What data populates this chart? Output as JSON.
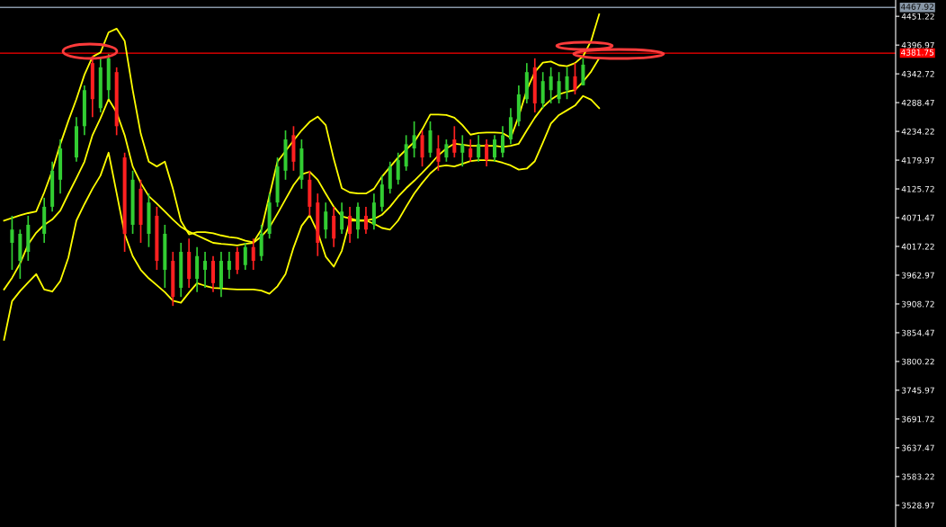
{
  "chart_data": {
    "type": "candlestick",
    "categories": [
      null,
      null,
      null,
      null,
      null,
      null,
      null,
      null,
      null,
      null,
      null,
      null,
      null,
      null,
      null,
      null,
      null,
      null,
      null,
      null,
      null,
      null,
      null,
      null,
      null,
      null,
      null,
      null,
      null,
      null,
      null,
      null,
      null,
      null,
      null,
      null,
      null,
      null,
      null,
      null,
      null,
      null,
      null,
      null,
      null,
      null,
      null,
      null,
      null,
      null,
      null,
      null,
      null,
      null,
      null,
      null,
      null,
      null,
      null,
      null,
      null,
      null,
      null,
      null,
      null,
      null,
      null,
      null,
      null,
      null,
      null,
      null,
      null,
      null,
      null
    ],
    "ohlc": [
      null,
      [
        4024,
        4075,
        3973,
        4049
      ],
      [
        3990,
        4049,
        3956,
        4041
      ],
      [
        4007,
        4075,
        3990,
        4058
      ],
      null,
      [
        4041,
        4109,
        4024,
        4092
      ],
      [
        4092,
        4177,
        4083,
        4160
      ],
      [
        4143,
        4219,
        4117,
        4202
      ],
      null,
      [
        4185,
        4261,
        4177,
        4244
      ],
      [
        4244,
        4321,
        4227,
        4312
      ],
      [
        4363,
        4377,
        4261,
        4295
      ],
      [
        4278,
        4372,
        4270,
        4355
      ],
      [
        4312,
        4380,
        4295,
        4372
      ],
      [
        4346,
        4355,
        4227,
        4244
      ],
      [
        4185,
        4194,
        4007,
        4041
      ],
      [
        4058,
        4160,
        4041,
        4143
      ],
      [
        4126,
        4143,
        4024,
        4058
      ],
      [
        4041,
        4117,
        4016,
        4100
      ],
      [
        4075,
        4092,
        3973,
        3990
      ],
      [
        3973,
        4058,
        3939,
        4041
      ],
      [
        3990,
        4007,
        3905,
        3922
      ],
      [
        3939,
        4024,
        3922,
        4007
      ],
      [
        4007,
        4032,
        3939,
        3956
      ],
      [
        3956,
        4016,
        3931,
        3999
      ],
      [
        3973,
        4007,
        3939,
        3990
      ],
      [
        3990,
        3999,
        3931,
        3948
      ],
      [
        3939,
        4007,
        3922,
        3990
      ],
      [
        3973,
        4007,
        3956,
        3990
      ],
      [
        4007,
        4016,
        3965,
        3973
      ],
      [
        3982,
        4024,
        3973,
        4016
      ],
      [
        4016,
        4032,
        3973,
        3990
      ],
      [
        3999,
        4058,
        3990,
        4041
      ],
      [
        4041,
        4117,
        4032,
        4100
      ],
      [
        4100,
        4185,
        4092,
        4168
      ],
      [
        4160,
        4236,
        4143,
        4219
      ],
      [
        4227,
        4244,
        4160,
        4177
      ],
      [
        4143,
        4219,
        4126,
        4202
      ],
      [
        4143,
        4160,
        4075,
        4092
      ],
      [
        4100,
        4117,
        3999,
        4024
      ],
      [
        4049,
        4100,
        4032,
        4083
      ],
      [
        4075,
        4092,
        4016,
        4032
      ],
      [
        4049,
        4100,
        4041,
        4083
      ],
      [
        4075,
        4092,
        4024,
        4041
      ],
      [
        4049,
        4100,
        4032,
        4092
      ],
      [
        4075,
        4092,
        4041,
        4049
      ],
      [
        4058,
        4117,
        4049,
        4100
      ],
      [
        4092,
        4151,
        4083,
        4134
      ],
      [
        4126,
        4177,
        4117,
        4168
      ],
      [
        4143,
        4194,
        4134,
        4180
      ],
      [
        4168,
        4227,
        4160,
        4210
      ],
      [
        4202,
        4253,
        4185,
        4227
      ],
      [
        4227,
        4236,
        4168,
        4185
      ],
      [
        4194,
        4253,
        4185,
        4236
      ],
      [
        4202,
        4227,
        4160,
        4177
      ],
      [
        4185,
        4219,
        4177,
        4210
      ],
      [
        4219,
        4244,
        4185,
        4194
      ],
      [
        4194,
        4227,
        4168,
        4210
      ],
      [
        4202,
        4219,
        4177,
        4185
      ],
      [
        4185,
        4227,
        4177,
        4210
      ],
      [
        4210,
        4219,
        4168,
        4180
      ],
      [
        4185,
        4227,
        4177,
        4219
      ],
      [
        4194,
        4244,
        4185,
        4227
      ],
      [
        4219,
        4278,
        4210,
        4261
      ],
      [
        4253,
        4321,
        4244,
        4304
      ],
      [
        4295,
        4363,
        4287,
        4346
      ],
      [
        4355,
        4372,
        4270,
        4287
      ],
      [
        4287,
        4346,
        4278,
        4329
      ],
      [
        4312,
        4355,
        4287,
        4338
      ],
      [
        4295,
        4346,
        4287,
        4329
      ],
      [
        4312,
        4355,
        4295,
        4338
      ],
      [
        4338,
        4363,
        4304,
        4312
      ],
      [
        4321,
        4372,
        4321,
        4360
      ],
      null,
      null
    ],
    "series": [
      {
        "type": "line",
        "color": "#ffff00",
        "values": [
          4066,
          4071,
          4076,
          4080,
          4083,
          4119,
          4160,
          4210,
          4254,
          4295,
          4341,
          4375,
          4383,
          4421,
          4428,
          4405,
          4312,
          4230,
          4177,
          4168,
          4177,
          4126,
          4065,
          4040,
          4044,
          4044,
          4042,
          4038,
          4035,
          4033,
          4028,
          4025,
          4049,
          4113,
          4177,
          4197,
          4217,
          4236,
          4252,
          4262,
          4246,
          4182,
          4127,
          4119,
          4117,
          4117,
          4126,
          4149,
          4167,
          4185,
          4200,
          4214,
          4238,
          4266,
          4266,
          4265,
          4260,
          4246,
          4228,
          4231,
          4232,
          4232,
          4231,
          4222,
          4263,
          4312,
          4346,
          4364,
          4366,
          4359,
          4357,
          4363,
          4376,
          4405,
          4455
        ]
      },
      {
        "type": "line",
        "color": "#ffff00",
        "values": [
          3936,
          3958,
          3985,
          4021,
          4043,
          4058,
          4068,
          4085,
          4116,
          4146,
          4177,
          4227,
          4259,
          4295,
          4270,
          4227,
          4168,
          4137,
          4112,
          4098,
          4083,
          4068,
          4054,
          4045,
          4038,
          4031,
          4024,
          4022,
          4021,
          4019,
          4022,
          4024,
          4036,
          4053,
          4079,
          4106,
          4133,
          4153,
          4158,
          4143,
          4117,
          4092,
          4074,
          4070,
          4066,
          4066,
          4069,
          4077,
          4092,
          4111,
          4127,
          4141,
          4156,
          4172,
          4189,
          4202,
          4211,
          4209,
          4207,
          4207,
          4207,
          4207,
          4205,
          4207,
          4211,
          4236,
          4260,
          4280,
          4294,
          4304,
          4309,
          4312,
          4328,
          4347,
          4372
        ]
      },
      {
        "type": "line",
        "color": "#ffff00",
        "values": [
          3841,
          3914,
          3933,
          3949,
          3965,
          3936,
          3932,
          3952,
          3996,
          4066,
          4097,
          4126,
          4151,
          4194,
          4118,
          4041,
          3999,
          3973,
          3957,
          3944,
          3931,
          3915,
          3911,
          3930,
          3948,
          3943,
          3939,
          3938,
          3937,
          3936,
          3936,
          3936,
          3934,
          3928,
          3942,
          3965,
          4015,
          4056,
          4076,
          4044,
          3998,
          3979,
          4009,
          4066,
          4066,
          4066,
          4060,
          4052,
          4049,
          4066,
          4092,
          4117,
          4137,
          4155,
          4168,
          4170,
          4168,
          4173,
          4178,
          4180,
          4180,
          4179,
          4175,
          4170,
          4162,
          4164,
          4178,
          4213,
          4249,
          4265,
          4274,
          4283,
          4301,
          4294,
          4278
        ]
      }
    ],
    "ylim": [
      3488,
      4482
    ],
    "yticks": [
      4451.22,
      4396.97,
      4342.72,
      4288.47,
      4234.22,
      4179.97,
      4125.72,
      4071.47,
      4017.22,
      3962.97,
      3908.72,
      3854.47,
      3800.22,
      3745.97,
      3691.72,
      3637.47,
      3583.22,
      3528.97
    ],
    "tick_labels": "y",
    "ref_lines": [
      {
        "axis": "y",
        "value": 4467.92,
        "label": "4467.92",
        "color": "#8796a6"
      },
      {
        "axis": "y",
        "value": 4381.75,
        "label": "4381.75",
        "color": "#ff0000"
      }
    ],
    "grid": false
  }
}
